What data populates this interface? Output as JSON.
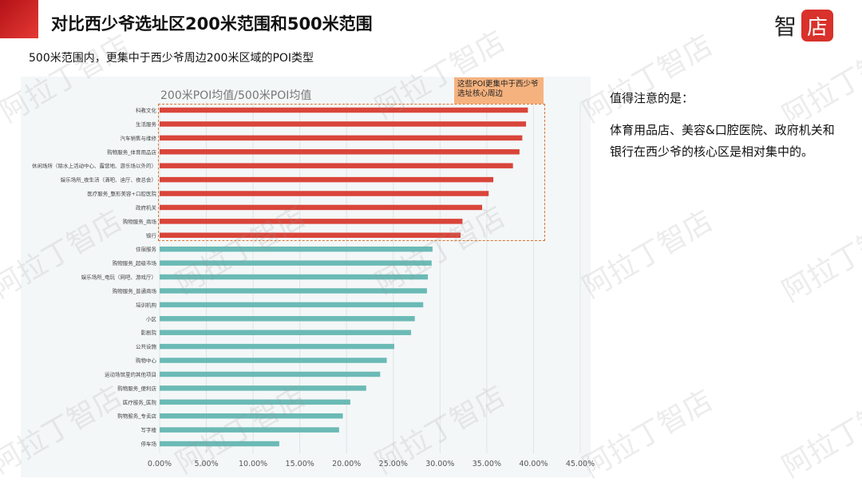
{
  "header": {
    "title": "对比西少爷选址区200米范围和500米范围"
  },
  "logo": {
    "text": "智",
    "box_text": "店"
  },
  "subtitle": "500米范围内，更集中于西少爷周边200米区域的POI类型",
  "callout": "这些POI更集中于西少爷选址核心周边",
  "notes": {
    "heading": "值得注意的是：",
    "body": "体育用品店、美容&口腔医院、政府机关和银行在西少爷的核心区是相对集中的。"
  },
  "watermark": "阿拉丁智店",
  "colors": {
    "highlight_bar": "#d9453a",
    "normal_bar": "#6bbab5",
    "brand_red": "#d9312b",
    "callout_fill": "#f6b27e"
  },
  "chart_data": {
    "type": "bar",
    "orientation": "horizontal",
    "title": "200米POI均值/500米POI均值",
    "categories": [
      "科教文化",
      "生活服务",
      "汽车销售与维修",
      "购物服务_体育用品店",
      "休闲场所（除水上活动中心、露营地、游乐场以外的）",
      "娱乐场所_夜生活（酒吧、迪厅、夜总会）",
      "医疗服务_整形美容+口腔医院",
      "政府机关",
      "购物服务_商场",
      "银行",
      "住宿服务",
      "购物服务_超级市场",
      "娱乐场所_电玩（网吧、游戏厅）",
      "购物服务_普通商场",
      "培训机构",
      "小区",
      "影剧院",
      "公共设施",
      "购物中心",
      "运动场馆里的其他项目",
      "购物服务_便利店",
      "医疗服务_医院",
      "购物服务_专卖店",
      "写字楼",
      "停车场"
    ],
    "values": [
      39.4,
      39.2,
      38.8,
      38.5,
      37.8,
      35.7,
      35.2,
      34.5,
      32.4,
      32.2,
      29.2,
      29.1,
      28.7,
      28.6,
      28.2,
      27.3,
      26.9,
      25.1,
      24.3,
      23.6,
      22.1,
      20.4,
      19.6,
      19.2,
      12.8
    ],
    "highlight_count": 10,
    "xlim": [
      0,
      45
    ],
    "xticks": [
      0,
      5,
      10,
      15,
      20,
      25,
      30,
      35,
      40,
      45
    ],
    "xtick_labels": [
      "0.00%",
      "5.00%",
      "10.00%",
      "15.00%",
      "20.00%",
      "25.00%",
      "30.00%",
      "35.00%",
      "40.00%",
      "45.00%"
    ],
    "grid": true
  }
}
